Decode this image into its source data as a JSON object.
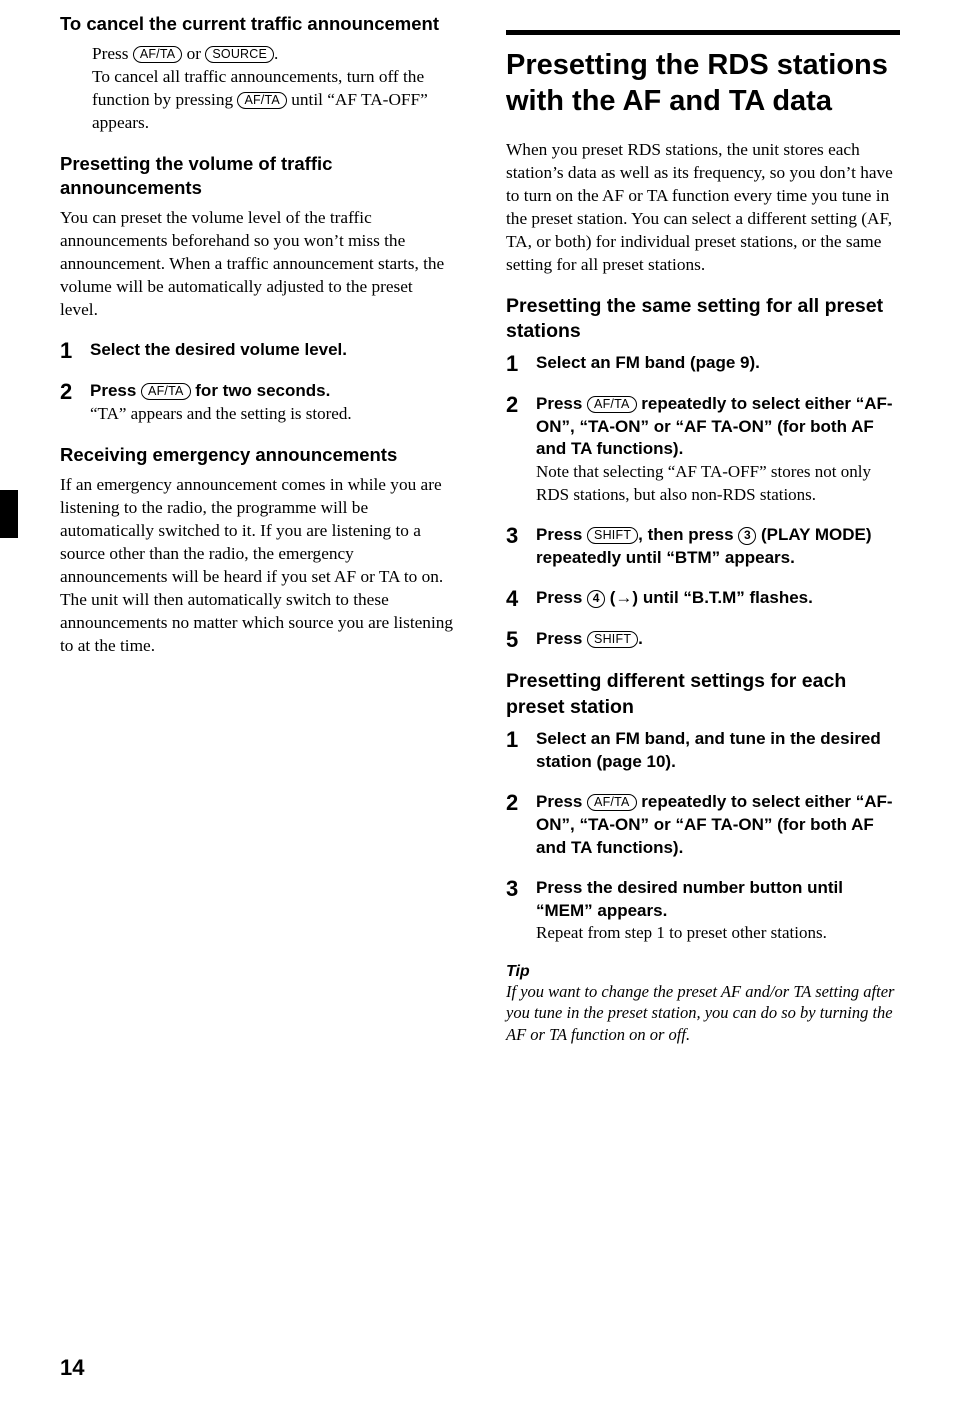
{
  "left": {
    "h1": "To cancel the current traffic announcement",
    "cancel": {
      "pre": "Press ",
      "btn1": "AF/TA",
      "mid": " or ",
      "btn2": "SOURCE",
      "post": ".",
      "line2a": "To cancel all traffic announcements, turn off the function by pressing ",
      "btn3": "AF/TA",
      "line2b": " until “AF TA-OFF” appears."
    },
    "h2": "Presetting the volume of traffic announcements",
    "p2": "You can preset the volume level of the traffic announcements beforehand so you won’t miss the announcement. When a traffic announcement starts, the volume will be automatically adjusted to the preset level.",
    "step1": "Select the desired volume level.",
    "step2": {
      "pre": "Press ",
      "btn": "AF/TA",
      "post": " for two seconds.",
      "tail": "“TA” appears and the setting is stored."
    },
    "h3": "Receiving emergency announcements",
    "p3": "If an emergency announcement comes in while you are listening to the radio, the programme will be automatically switched to it. If you are listening to a source other than the radio, the emergency announcements will be heard if you set AF or TA to on. The unit will then automatically switch to these announcements no matter which source you are listening to at the time."
  },
  "right": {
    "h1": "Presetting the RDS stations with the AF and TA data",
    "p1": "When you preset RDS stations, the unit stores each station’s data as well as its frequency, so you don’t have to turn on the AF or TA function every time you tune in the preset station. You can select a different setting (AF, TA, or both) for individual preset stations, or the same setting for all preset stations.",
    "h2": "Presetting the same setting for all preset stations",
    "a1": "Select an FM band (page 9).",
    "a2": {
      "pre": "Press ",
      "btn": "AF/TA",
      "post": " repeatedly to select either “AF-ON”, “TA-ON” or “AF TA-ON” (for both AF and TA functions).",
      "tail": "Note that selecting “AF TA-OFF” stores not only RDS stations, but also non-RDS stations."
    },
    "a3": {
      "pre": "Press ",
      "btn": "SHIFT",
      "mid": ", then press ",
      "num": "3",
      "post": " (PLAY MODE) repeatedly until “BTM” appears."
    },
    "a4": {
      "pre": "Press ",
      "num": "4",
      "post": " (→) until “B.T.M” flashes."
    },
    "a5": {
      "pre": "Press ",
      "btn": "SHIFT",
      "post": "."
    },
    "h3": "Presetting different settings for each preset station",
    "b1": "Select an FM band, and tune in the desired station (page 10).",
    "b2": {
      "pre": "Press ",
      "btn": "AF/TA",
      "post": " repeatedly to select either “AF-ON”, “TA-ON” or “AF TA-ON” (for both AF and TA functions)."
    },
    "b3": {
      "lead": "Press the desired number button until “MEM” appears.",
      "tail": "Repeat from step 1 to preset other stations."
    },
    "tipHead": "Tip",
    "tipBody": "If you want to change the preset AF and/or TA setting after you tune in the preset station, you can do so by turning the AF or TA function on or off."
  },
  "pageNumber": "14",
  "buttons": {
    "afta": "AF/TA",
    "source": "SOURCE",
    "shift": "SHIFT"
  }
}
